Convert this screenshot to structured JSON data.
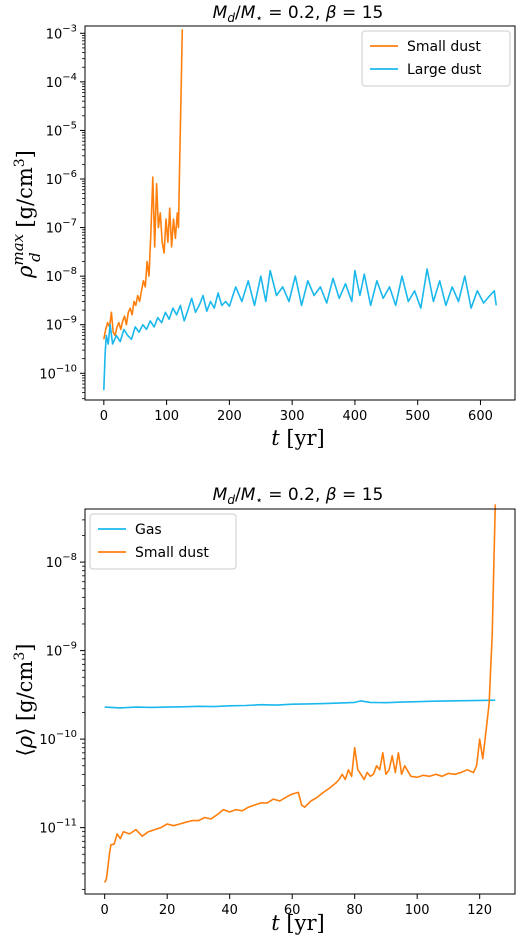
{
  "chart_data": [
    {
      "type": "line",
      "title": "M_d/M_⋆ = 0.2, β = 15",
      "xlabel": "t [yr]",
      "ylabel": "ρ_d^max [g/cm³]",
      "y_scale": "log",
      "xlim": [
        -30,
        655
      ],
      "ylim_log10": [
        -10.55,
        -2.85
      ],
      "x_ticks": [
        {
          "v": 0,
          "label": "0"
        },
        {
          "v": 100,
          "label": "100"
        },
        {
          "v": 200,
          "label": "200"
        },
        {
          "v": 300,
          "label": "300"
        },
        {
          "v": 400,
          "label": "400"
        },
        {
          "v": 500,
          "label": "500"
        },
        {
          "v": 600,
          "label": "600"
        }
      ],
      "y_ticks": [
        {
          "e": -10,
          "label": "10",
          "exp": "−10"
        },
        {
          "e": -9,
          "label": "10",
          "exp": "−9"
        },
        {
          "e": -8,
          "label": "10",
          "exp": "−8"
        },
        {
          "e": -7,
          "label": "10",
          "exp": "−7"
        },
        {
          "e": -6,
          "label": "10",
          "exp": "−6"
        },
        {
          "e": -5,
          "label": "10",
          "exp": "−5"
        },
        {
          "e": -4,
          "label": "10",
          "exp": "−4"
        },
        {
          "e": -3,
          "label": "10",
          "exp": "−3"
        }
      ],
      "legend": {
        "position": "top-right"
      },
      "series": [
        {
          "name": "Small dust",
          "color": "#ff7f0e",
          "x": [
            0,
            3,
            6,
            9,
            12,
            15,
            18,
            21,
            24,
            27,
            30,
            33,
            36,
            39,
            42,
            45,
            48,
            51,
            54,
            57,
            60,
            63,
            66,
            69,
            72,
            75,
            78,
            81,
            84,
            87,
            90,
            93,
            96,
            99,
            102,
            105,
            108,
            111,
            114,
            117,
            119,
            121,
            123,
            125
          ],
          "y": [
            5e-10,
            8e-10,
            1.1e-09,
            9e-10,
            1.8e-09,
            7e-10,
            6e-10,
            9e-10,
            1.1e-09,
            8e-10,
            1.2e-09,
            1.5e-09,
            1e-09,
            1.8e-09,
            2.2e-09,
            1.6e-09,
            3e-09,
            2.5e-09,
            4e-09,
            3e-09,
            5e-09,
            8e-09,
            6e-09,
            2e-08,
            1e-08,
            8e-08,
            1.1e-06,
            4e-08,
            8e-07,
            1e-07,
            2e-07,
            5e-08,
            3e-08,
            1.5e-07,
            5e-08,
            2.5e-07,
            4e-08,
            1.5e-07,
            6e-08,
            2e-07,
            1e-07,
            3e-06,
            5e-05,
            0.0012
          ]
        },
        {
          "name": "Large dust",
          "color": "#1ab8ec",
          "x": [
            0,
            2,
            4,
            7,
            10,
            14,
            20,
            26,
            32,
            38,
            44,
            50,
            56,
            62,
            68,
            74,
            80,
            86,
            92,
            98,
            104,
            110,
            116,
            122,
            128,
            134,
            140,
            146,
            152,
            158,
            164,
            170,
            176,
            182,
            188,
            194,
            200,
            210,
            220,
            230,
            240,
            250,
            258,
            265,
            275,
            285,
            295,
            305,
            315,
            325,
            335,
            345,
            355,
            365,
            375,
            385,
            395,
            400,
            408,
            415,
            425,
            435,
            445,
            455,
            465,
            475,
            485,
            495,
            505,
            515,
            525,
            535,
            545,
            555,
            565,
            575,
            585,
            595,
            605,
            615,
            622,
            625
          ],
          "y": [
            4.5e-11,
            2.5e-10,
            6e-10,
            4e-10,
            1e-09,
            4e-10,
            6e-10,
            4.5e-10,
            8e-10,
            6e-10,
            5e-10,
            9e-10,
            7e-10,
            1e-09,
            8e-10,
            1.2e-09,
            9e-10,
            1.4e-09,
            1.1e-09,
            1.8e-09,
            1.3e-09,
            2.2e-09,
            1.6e-09,
            2.5e-09,
            1.2e-09,
            2e-09,
            3.5e-09,
            1.8e-09,
            2.5e-09,
            4e-09,
            1.9e-09,
            3e-09,
            2.2e-09,
            4.5e-09,
            2.5e-09,
            3e-09,
            2.4e-09,
            6e-09,
            3e-09,
            8e-09,
            2.5e-09,
            1e-08,
            3e-09,
            1.3e-08,
            4e-09,
            6e-09,
            3e-09,
            1e-08,
            2.5e-09,
            8e-09,
            4e-09,
            6e-09,
            2.8e-09,
            9e-09,
            3.5e-09,
            7e-09,
            3e-09,
            1.3e-08,
            4e-09,
            1.1e-08,
            2.5e-09,
            8e-09,
            3.5e-09,
            6e-09,
            2.5e-09,
            1e-08,
            3e-09,
            5e-09,
            2.2e-09,
            1.4e-08,
            3e-09,
            8e-09,
            2.5e-09,
            6e-09,
            3e-09,
            1e-08,
            2.2e-09,
            5e-09,
            2.8e-09,
            4e-09,
            5e-09,
            2.5e-09
          ]
        }
      ]
    },
    {
      "type": "line",
      "title": "M_d/M_⋆ = 0.2, β = 15",
      "xlabel": "t [yr]",
      "ylabel": "⟨ρ⟩ [g/cm³]",
      "y_scale": "log",
      "xlim": [
        -6.3,
        131.3
      ],
      "ylim_log10": [
        -11.75,
        -7.4
      ],
      "x_ticks": [
        {
          "v": 0,
          "label": "0"
        },
        {
          "v": 20,
          "label": "20"
        },
        {
          "v": 40,
          "label": "40"
        },
        {
          "v": 60,
          "label": "60"
        },
        {
          "v": 80,
          "label": "80"
        },
        {
          "v": 100,
          "label": "100"
        },
        {
          "v": 120,
          "label": "120"
        }
      ],
      "y_ticks": [
        {
          "e": -11,
          "label": "10",
          "exp": "−11"
        },
        {
          "e": -10,
          "label": "10",
          "exp": "−10"
        },
        {
          "e": -9,
          "label": "10",
          "exp": "−9"
        },
        {
          "e": -8,
          "label": "10",
          "exp": "−8"
        }
      ],
      "legend": {
        "position": "top-left"
      },
      "series": [
        {
          "name": "Gas",
          "color": "#1ab8ec",
          "x": [
            0,
            5,
            10,
            15,
            20,
            25,
            30,
            35,
            40,
            45,
            50,
            55,
            60,
            65,
            70,
            75,
            80,
            82,
            85,
            90,
            95,
            100,
            105,
            110,
            115,
            120,
            125
          ],
          "y": [
            2.3e-10,
            2.25e-10,
            2.3e-10,
            2.28e-10,
            2.3e-10,
            2.32e-10,
            2.35e-10,
            2.33e-10,
            2.38e-10,
            2.4e-10,
            2.45e-10,
            2.42e-10,
            2.48e-10,
            2.5e-10,
            2.52e-10,
            2.55e-10,
            2.6e-10,
            2.7e-10,
            2.6e-10,
            2.58e-10,
            2.62e-10,
            2.65e-10,
            2.68e-10,
            2.7e-10,
            2.72e-10,
            2.74e-10,
            2.75e-10
          ]
        },
        {
          "name": "Small dust",
          "color": "#ff7f0e",
          "x": [
            0,
            0.5,
            1,
            1.5,
            2,
            3,
            4,
            5,
            6,
            8,
            10,
            12,
            14,
            16,
            18,
            20,
            22,
            24,
            26,
            28,
            30,
            32,
            34,
            36,
            38,
            40,
            42,
            44,
            46,
            48,
            50,
            52,
            54,
            56,
            58,
            60,
            62,
            63,
            64,
            66,
            68,
            70,
            72,
            74,
            75,
            76,
            77,
            78,
            79,
            80,
            81,
            82,
            83,
            84,
            85,
            86,
            87,
            88,
            89,
            90,
            91,
            92,
            93,
            94,
            95,
            96,
            98,
            100,
            102,
            104,
            106,
            108,
            110,
            112,
            114,
            116,
            118,
            119,
            120,
            121,
            122,
            123,
            124,
            124.5,
            125
          ],
          "y": [
            2.4e-12,
            2.6e-12,
            3.5e-12,
            5e-12,
            6.4e-12,
            6.5e-12,
            8.5e-12,
            7.5e-12,
            9e-12,
            8.5e-12,
            9.5e-12,
            8e-12,
            9e-12,
            9.5e-12,
            1e-11,
            1.1e-11,
            1.05e-11,
            1.1e-11,
            1.15e-11,
            1.2e-11,
            1.2e-11,
            1.3e-11,
            1.25e-11,
            1.4e-11,
            1.6e-11,
            1.5e-11,
            1.6e-11,
            1.55e-11,
            1.7e-11,
            1.8e-11,
            1.9e-11,
            1.9e-11,
            2.1e-11,
            2e-11,
            2.2e-11,
            2.4e-11,
            2.5e-11,
            1.8e-11,
            1.7e-11,
            2e-11,
            2.2e-11,
            2.5e-11,
            2.8e-11,
            3.2e-11,
            3.5e-11,
            4e-11,
            3.5e-11,
            4.5e-11,
            3.8e-11,
            8e-11,
            4.5e-11,
            4e-11,
            3.5e-11,
            4.2e-11,
            3.8e-11,
            4e-11,
            5e-11,
            4.5e-11,
            7e-11,
            4e-11,
            4.5e-11,
            6.5e-11,
            4.2e-11,
            7e-11,
            4e-11,
            5e-11,
            3.8e-11,
            3.7e-11,
            3.9e-11,
            3.8e-11,
            4e-11,
            3.8e-11,
            4.1e-11,
            4e-11,
            4.2e-11,
            4.5e-11,
            4.2e-11,
            5e-11,
            1e-10,
            6e-11,
            1.2e-10,
            2.5e-10,
            1.5e-09,
            8e-09,
            4.5e-08
          ]
        }
      ]
    }
  ]
}
